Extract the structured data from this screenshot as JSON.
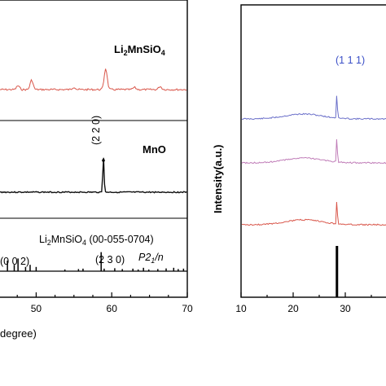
{
  "chart_data": [
    {
      "type": "line",
      "xlabel": "degree)",
      "xlim": [
        45,
        70
      ],
      "xticks": [
        "50",
        "60",
        "70"
      ],
      "series": [
        {
          "name": "Li2MnSiO4",
          "color": "#d9564a",
          "peaks": [
            [
              47.6,
              0.18
            ],
            [
              49.4,
              0.45
            ],
            [
              55.0,
              0.12
            ],
            [
              59.2,
              1.0
            ],
            [
              63.0,
              0.1
            ],
            [
              66.4,
              0.15
            ]
          ]
        },
        {
          "name": "MnO",
          "color": "#111111",
          "peaks": [
            [
              58.9,
              1.0
            ]
          ]
        },
        {
          "name": "Li2MnSiO4 (00-055-0704)",
          "color": "#000000",
          "sticks": [
            [
              46.2,
              0.5
            ],
            [
              47.1,
              0.3
            ],
            [
              47.6,
              0.6
            ],
            [
              48.6,
              0.2
            ],
            [
              49.2,
              0.3
            ],
            [
              50.0,
              0.2
            ],
            [
              53.8,
              0.08
            ],
            [
              55.6,
              0.1
            ],
            [
              56.2,
              0.12
            ],
            [
              58.6,
              0.9
            ],
            [
              59.0,
              0.12
            ],
            [
              60.4,
              0.14
            ],
            [
              61.4,
              0.1
            ],
            [
              62.8,
              0.12
            ],
            [
              63.5,
              0.08
            ],
            [
              64.2,
              0.16
            ],
            [
              64.9,
              0.08
            ],
            [
              66.1,
              0.1
            ],
            [
              67.2,
              0.13
            ],
            [
              68.2,
              0.16
            ],
            [
              68.8,
              0.1
            ],
            [
              69.5,
              0.12
            ]
          ]
        }
      ],
      "annotations": {
        "li2mnsio4": {
          "pre": "Li",
          "s1": "2",
          "mid": "MnSiO",
          "s2": "4"
        },
        "mno": "MnO",
        "hkl_220": "(2 2 0)",
        "ref": {
          "pre": "Li",
          "s1": "2",
          "mid": "MnSiO",
          "s2": "4",
          "post": " (00-055-0704)"
        },
        "hkl_002": "(0 0 2)",
        "hkl_230": "(2 3 0)",
        "space_group": {
          "p": "P2",
          "s": "1",
          "post": "/n"
        }
      }
    },
    {
      "type": "line",
      "ylabel": "Intensity(a.u.)",
      "xlim": [
        10,
        36
      ],
      "xticks": [
        "10",
        "20",
        "30"
      ],
      "peak_label": "(1 1 1)",
      "peak_label_color": "#3a4fc7",
      "series": [
        {
          "name": "",
          "color": "#6a6fc9",
          "peak_x": 28.4,
          "peak_height": 1.0
        },
        {
          "name": "",
          "color": "#c07db8",
          "peak_x": 28.4,
          "peak_height": 1.0
        },
        {
          "name": "",
          "color": "#d9564a",
          "peak_x": 28.4,
          "peak_height": 1.0
        }
      ],
      "reference_stick": {
        "x": 28.4,
        "color": "#000000"
      }
    }
  ]
}
